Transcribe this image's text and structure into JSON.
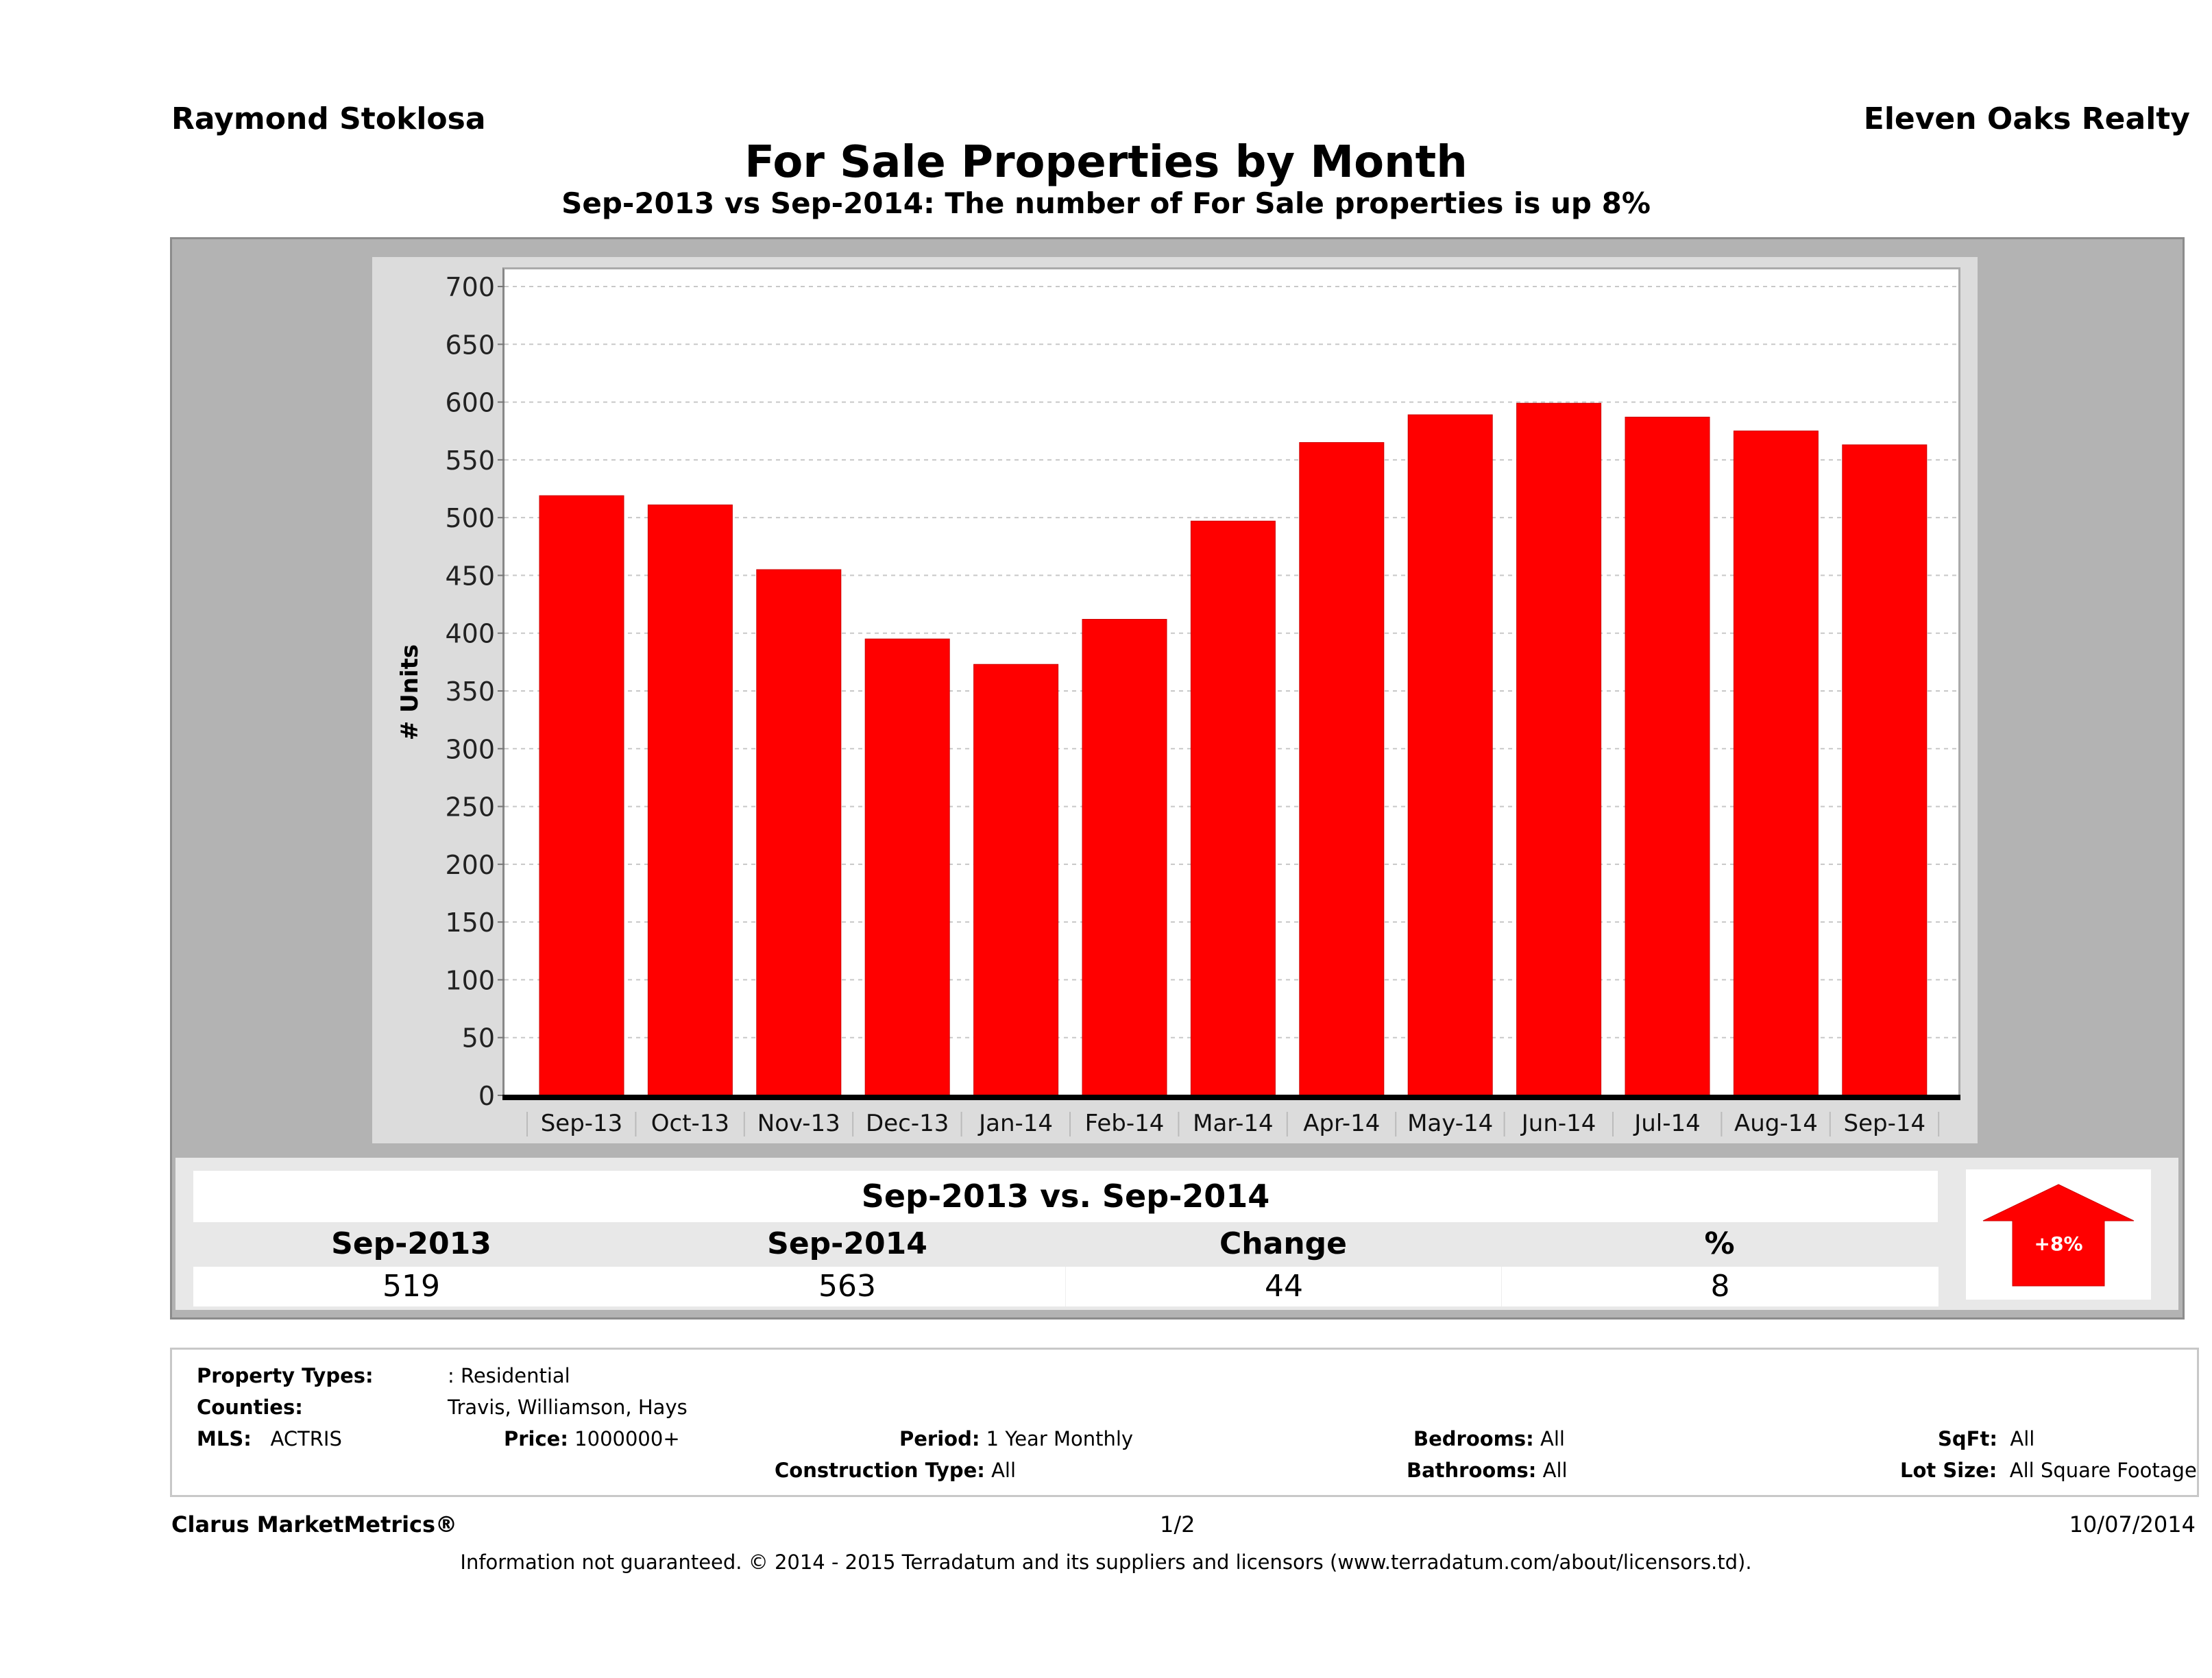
{
  "header": {
    "agent_name": "Raymond Stoklosa",
    "company_name": "Eleven Oaks Realty",
    "title": "For Sale Properties by Month",
    "subtitle": "Sep-2013 vs Sep-2014: The number of For Sale  properties is up 8%"
  },
  "colors": {
    "bar": "#ff0000",
    "frame": "#b3b3b3",
    "chart_panel": "#dcdcdc",
    "summary_panel": "#e8e8e8"
  },
  "chart_data": {
    "type": "bar",
    "title": "For Sale Properties by Month",
    "xlabel": "",
    "ylabel": "# Units",
    "ylim": [
      0,
      700
    ],
    "yticks": [
      0,
      50,
      100,
      150,
      200,
      250,
      300,
      350,
      400,
      450,
      500,
      550,
      600,
      650,
      700
    ],
    "grid": true,
    "categories": [
      "Sep-13",
      "Oct-13",
      "Nov-13",
      "Dec-13",
      "Jan-14",
      "Feb-14",
      "Mar-14",
      "Apr-14",
      "May-14",
      "Jun-14",
      "Jul-14",
      "Aug-14",
      "Sep-14"
    ],
    "values": [
      519,
      511,
      455,
      395,
      373,
      412,
      497,
      565,
      589,
      599,
      587,
      575,
      563
    ]
  },
  "summary": {
    "title": "Sep-2013 vs. Sep-2014",
    "headers": [
      "Sep-2013",
      "Sep-2014",
      "Change",
      "%"
    ],
    "values": [
      "519",
      "563",
      "44",
      "8"
    ],
    "badge": {
      "icon": "arrow-up-icon",
      "label": "+8%",
      "direction": "up"
    }
  },
  "criteria": {
    "property_types_label": "Property Types:",
    "property_types_value": ": Residential",
    "counties_label": "Counties:",
    "counties_value": "Travis, Williamson, Hays",
    "mls_label": "MLS:",
    "mls_value": "ACTRIS",
    "price_label": "Price:",
    "price_value": "1000000+",
    "period_label": "Period:",
    "period_value": "1 Year Monthly",
    "construction_label": "Construction Type:",
    "construction_value": "All",
    "bedrooms_label": "Bedrooms:",
    "bedrooms_value": "All",
    "bathrooms_label": "Bathrooms:",
    "bathrooms_value": "All",
    "sqft_label": "SqFt:",
    "sqft_value": "All",
    "lot_label": "Lot Size:",
    "lot_value": "All Square Footage"
  },
  "footer": {
    "brand": "Clarus MarketMetrics®",
    "page": "1/2",
    "date": "10/07/2014",
    "disclaimer": "Information not guaranteed. © 2014 - 2015 Terradatum and its suppliers and licensors (www.terradatum.com/about/licensors.td)."
  }
}
